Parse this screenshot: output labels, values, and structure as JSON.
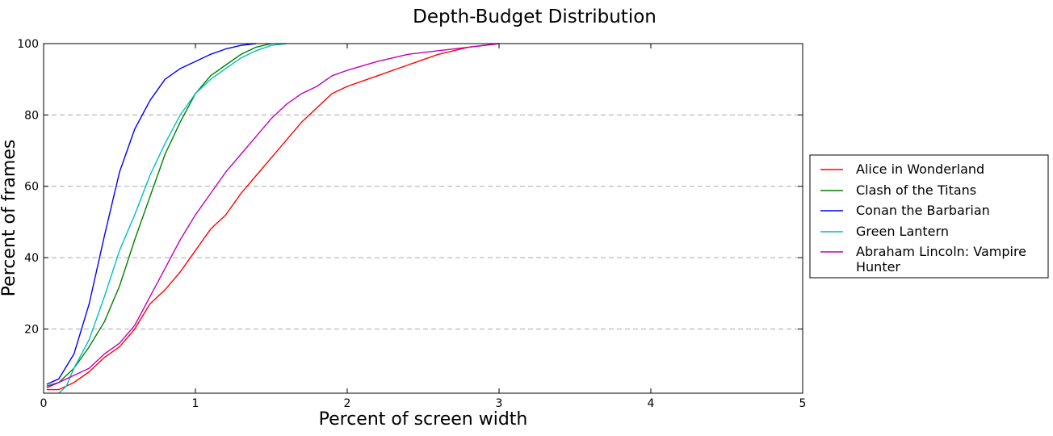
{
  "chart_data": {
    "type": "line",
    "title": "Depth-Budget Distribution",
    "xlabel": "Percent of screen width",
    "ylabel": "Percent of frames",
    "xlim": [
      0,
      5
    ],
    "ylim": [
      2,
      100
    ],
    "x_ticks": [
      0,
      1,
      2,
      3,
      4,
      5
    ],
    "y_ticks": [
      20,
      40,
      60,
      80,
      100
    ],
    "grid": "horizontal-dashed",
    "legend_position": "outside-right",
    "series": [
      {
        "name": "Alice in Wonderland",
        "color": "#ff0000",
        "points": [
          [
            0.02,
            3
          ],
          [
            0.1,
            3
          ],
          [
            0.2,
            5
          ],
          [
            0.3,
            8
          ],
          [
            0.4,
            12
          ],
          [
            0.5,
            15
          ],
          [
            0.6,
            20
          ],
          [
            0.7,
            27
          ],
          [
            0.8,
            31
          ],
          [
            0.9,
            36
          ],
          [
            1.0,
            42
          ],
          [
            1.1,
            48
          ],
          [
            1.2,
            52
          ],
          [
            1.3,
            58
          ],
          [
            1.4,
            63
          ],
          [
            1.5,
            68
          ],
          [
            1.6,
            73
          ],
          [
            1.7,
            78
          ],
          [
            1.8,
            82
          ],
          [
            1.9,
            86
          ],
          [
            2.0,
            88
          ],
          [
            2.2,
            91
          ],
          [
            2.4,
            94
          ],
          [
            2.6,
            97
          ],
          [
            2.8,
            99
          ],
          [
            3.0,
            100
          ]
        ]
      },
      {
        "name": "Clash of the Titans",
        "color": "#008000",
        "points": [
          [
            0.02,
            4
          ],
          [
            0.1,
            5
          ],
          [
            0.2,
            9
          ],
          [
            0.3,
            15
          ],
          [
            0.4,
            22
          ],
          [
            0.5,
            32
          ],
          [
            0.6,
            45
          ],
          [
            0.7,
            57
          ],
          [
            0.8,
            69
          ],
          [
            0.9,
            78
          ],
          [
            1.0,
            86
          ],
          [
            1.1,
            91
          ],
          [
            1.2,
            94
          ],
          [
            1.3,
            97
          ],
          [
            1.4,
            99
          ],
          [
            1.5,
            100
          ]
        ]
      },
      {
        "name": "Conan the Barbarian",
        "color": "#0000ff",
        "points": [
          [
            0.02,
            4.5
          ],
          [
            0.1,
            6
          ],
          [
            0.2,
            13
          ],
          [
            0.3,
            27
          ],
          [
            0.4,
            46
          ],
          [
            0.5,
            64
          ],
          [
            0.6,
            76
          ],
          [
            0.7,
            84
          ],
          [
            0.8,
            90
          ],
          [
            0.9,
            93
          ],
          [
            1.0,
            95
          ],
          [
            1.1,
            97
          ],
          [
            1.2,
            98.5
          ],
          [
            1.3,
            99.5
          ],
          [
            1.4,
            100
          ]
        ]
      },
      {
        "name": "Green Lantern",
        "color": "#00bfbf",
        "points": [
          [
            0.1,
            2
          ],
          [
            0.15,
            4
          ],
          [
            0.2,
            9
          ],
          [
            0.3,
            17
          ],
          [
            0.4,
            29
          ],
          [
            0.5,
            42
          ],
          [
            0.6,
            52
          ],
          [
            0.7,
            63
          ],
          [
            0.8,
            72
          ],
          [
            0.9,
            80
          ],
          [
            1.0,
            86
          ],
          [
            1.1,
            90
          ],
          [
            1.2,
            93
          ],
          [
            1.3,
            96
          ],
          [
            1.4,
            98
          ],
          [
            1.5,
            99.5
          ],
          [
            1.6,
            100
          ]
        ]
      },
      {
        "name": "Abraham Lincoln: Vampire Hunter",
        "color": "#bf00bf",
        "points": [
          [
            0.02,
            3.5
          ],
          [
            0.1,
            5
          ],
          [
            0.2,
            7
          ],
          [
            0.3,
            9
          ],
          [
            0.4,
            13
          ],
          [
            0.5,
            16
          ],
          [
            0.6,
            21
          ],
          [
            0.7,
            29
          ],
          [
            0.8,
            37
          ],
          [
            0.9,
            45
          ],
          [
            1.0,
            52
          ],
          [
            1.1,
            58
          ],
          [
            1.2,
            64
          ],
          [
            1.3,
            69
          ],
          [
            1.4,
            74
          ],
          [
            1.5,
            79
          ],
          [
            1.6,
            83
          ],
          [
            1.7,
            86
          ],
          [
            1.8,
            88
          ],
          [
            1.9,
            91
          ],
          [
            2.0,
            92.5
          ],
          [
            2.2,
            95
          ],
          [
            2.4,
            97
          ],
          [
            2.6,
            98
          ],
          [
            2.8,
            99
          ],
          [
            3.0,
            100
          ]
        ]
      }
    ]
  }
}
